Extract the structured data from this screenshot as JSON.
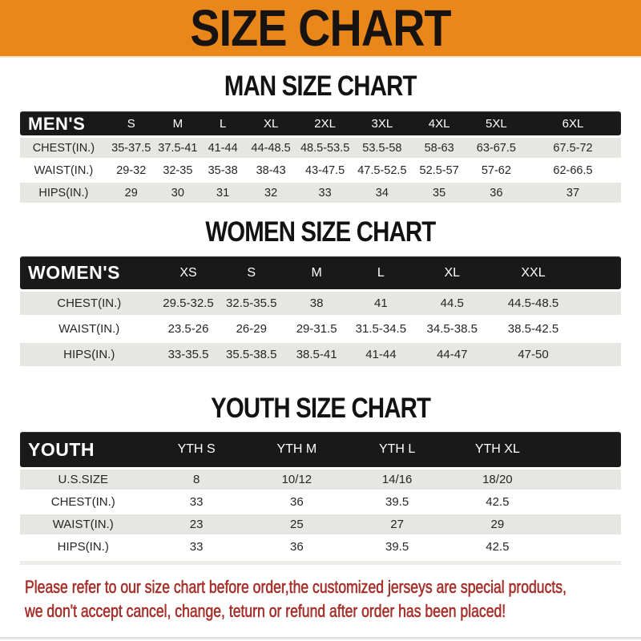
{
  "banner": {
    "title": "SIZE CHART",
    "bg_color": "#E9871A"
  },
  "sections": [
    {
      "id": "men",
      "heading": "MAN SIZE CHART",
      "table": {
        "corner_label": "MEN'S",
        "columns": [
          "S",
          "M",
          "L",
          "XL",
          "2XL",
          "3XL",
          "4XL",
          "5XL",
          "6XL"
        ],
        "rows": [
          {
            "label": "CHEST(IN.)",
            "values": [
              "35-37.5",
              "37.5-41",
              "41-44",
              "44-48.5",
              "48.5-53.5",
              "53.5-58",
              "58-63",
              "63-67.5",
              "67.5-72"
            ]
          },
          {
            "label": "WAIST(IN.)",
            "values": [
              "29-32",
              "32-35",
              "35-38",
              "38-43",
              "43-47.5",
              "47.5-52.5",
              "52.5-57",
              "57-62",
              "62-66.5"
            ]
          },
          {
            "label": "HIPS(IN.)",
            "values": [
              "29",
              "30",
              "31",
              "32",
              "33",
              "34",
              "35",
              "36",
              "37"
            ]
          }
        ]
      }
    },
    {
      "id": "women",
      "heading": "WOMEN SIZE CHART",
      "table": {
        "corner_label": "WOMEN'S",
        "columns": [
          "XS",
          "S",
          "M",
          "L",
          "XL",
          "XXL"
        ],
        "rows": [
          {
            "label": "CHEST(IN.)",
            "values": [
              "29.5-32.5",
              "32.5-35.5",
              "38",
              "41",
              "44.5",
              "44.5-48.5"
            ]
          },
          {
            "label": "WAIST(IN.)",
            "values": [
              "23.5-26",
              "26-29",
              "29-31.5",
              "31.5-34.5",
              "34.5-38.5",
              "38.5-42.5"
            ]
          },
          {
            "label": "HIPS(IN.)",
            "values": [
              "33-35.5",
              "35.5-38.5",
              "38.5-41",
              "41-44",
              "44-47",
              "47-50"
            ]
          }
        ]
      }
    },
    {
      "id": "youth",
      "heading": "YOUTH SIZE CHART",
      "table": {
        "corner_label": "YOUTH",
        "columns": [
          "YTH S",
          "YTH M",
          "YTH L",
          "YTH XL"
        ],
        "rows": [
          {
            "label": "U.S.SIZE",
            "values": [
              "8",
              "10/12",
              "14/16",
              "18/20"
            ]
          },
          {
            "label": "CHEST(IN.)",
            "values": [
              "33",
              "36",
              "39.5",
              "42.5"
            ]
          },
          {
            "label": "WAIST(IN.)",
            "values": [
              "23",
              "25",
              "27",
              "29"
            ]
          },
          {
            "label": "HIPS(IN.)",
            "values": [
              "33",
              "36",
              "39.5",
              "42.5"
            ]
          }
        ]
      }
    }
  ],
  "footer": {
    "lines": [
      "Please refer to our size chart before order,the customized jerseys are special products,",
      "we don't accept cancel, change, teturn or refund after order has been placed!"
    ],
    "text_color": "#A6302B"
  },
  "colors": {
    "header_bar": "#191919",
    "row_alt": "#E6E6E3",
    "banner_orange": "#E9871A"
  }
}
